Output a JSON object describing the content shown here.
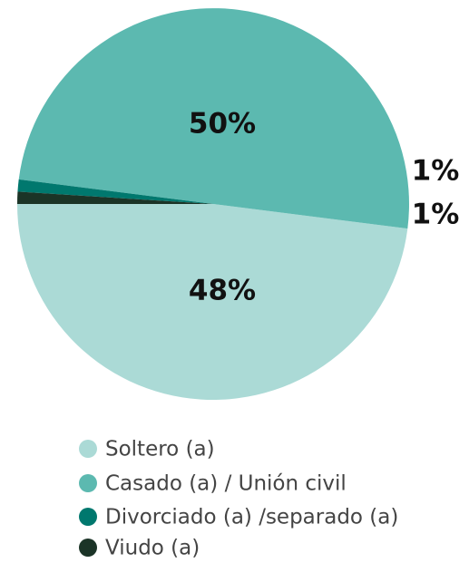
{
  "chart_data": {
    "type": "pie",
    "categories": [
      "Soltero (a)",
      "Casado (a) / Unión civil",
      "Divorciado (a) /separado (a)",
      "Viudo (a)"
    ],
    "values": [
      48,
      50,
      1,
      1
    ],
    "value_labels": [
      "48%",
      "50%",
      "1%",
      "1%"
    ],
    "colors": [
      "#abdad6",
      "#5cb9b0",
      "#00786e",
      "#1b3427"
    ]
  }
}
